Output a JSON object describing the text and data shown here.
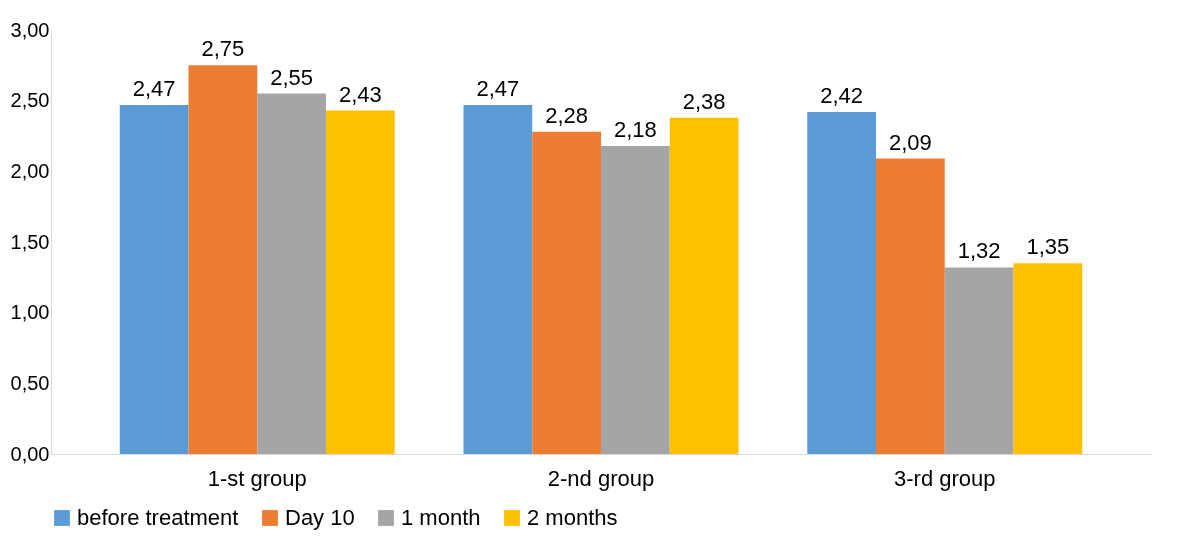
{
  "chart_data": {
    "type": "bar",
    "categories": [
      "1-st group",
      "2-nd group",
      "3-rd group"
    ],
    "series": [
      {
        "name": "before treatment",
        "color": "#5b9bd5",
        "values": [
          2.47,
          2.47,
          2.42
        ],
        "value_labels": [
          "2,47",
          "2,47",
          "2,42"
        ]
      },
      {
        "name": "Day 10",
        "color": "#ed7d31",
        "values": [
          2.75,
          2.28,
          2.09
        ],
        "value_labels": [
          "2,75",
          "2,28",
          "2,09"
        ]
      },
      {
        "name": "1 month",
        "color": "#a5a5a5",
        "values": [
          2.55,
          2.18,
          1.32
        ],
        "value_labels": [
          "2,55",
          "2,18",
          "1,32"
        ]
      },
      {
        "name": "2 months",
        "color": "#ffc000",
        "values": [
          2.43,
          2.38,
          1.35
        ],
        "value_labels": [
          "2,43",
          "2,38",
          "1,35"
        ]
      }
    ],
    "ylim": [
      0,
      3
    ],
    "yticks": [
      {
        "value": 0,
        "label": "0,00"
      },
      {
        "value": 0.5,
        "label": "0,50"
      },
      {
        "value": 1,
        "label": "1,00"
      },
      {
        "value": 1.5,
        "label": "1,50"
      },
      {
        "value": 2,
        "label": "2,00"
      },
      {
        "value": 2.5,
        "label": "2,50"
      },
      {
        "value": 3,
        "label": "3,00"
      }
    ],
    "grid": false,
    "legend": "bottom"
  }
}
